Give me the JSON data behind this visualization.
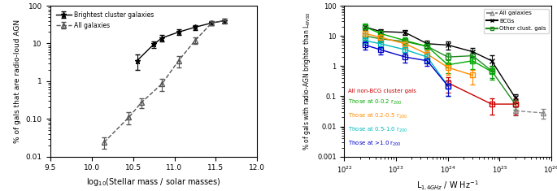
{
  "left": {
    "bcg_x": [
      10.55,
      10.75,
      10.85,
      11.05,
      11.25,
      11.45,
      11.6
    ],
    "bcg_y": [
      3.5,
      9.5,
      14.0,
      20.0,
      27.0,
      35.0,
      40.0
    ],
    "bcg_yerr_low": [
      1.5,
      2.0,
      2.5,
      3.5,
      4.0,
      5.0,
      5.0
    ],
    "bcg_yerr_high": [
      1.5,
      2.0,
      2.5,
      3.5,
      4.0,
      5.0,
      5.0
    ],
    "all_x": [
      10.15,
      10.45,
      10.6,
      10.85,
      11.05,
      11.25,
      11.45,
      11.6
    ],
    "all_y": [
      0.024,
      0.11,
      0.27,
      0.85,
      3.5,
      12.0,
      35.0,
      40.0
    ],
    "all_yerr_low": [
      0.008,
      0.04,
      0.08,
      0.3,
      1.2,
      2.5,
      5.0,
      5.0
    ],
    "all_yerr_high": [
      0.008,
      0.04,
      0.08,
      0.3,
      1.2,
      2.5,
      5.0,
      5.0
    ],
    "xlabel": "log$_{10}$(Stellar mass / solar masses)",
    "ylabel": "% of gals that are radio-loud AGN",
    "xlim": [
      9.5,
      12.0
    ],
    "ylim": [
      0.01,
      100.0
    ],
    "legend1": "Brightest cluster galaxies",
    "legend2": "All galaxies"
  },
  "right": {
    "lum_bins": [
      2.5e+22,
      5e+22,
      1.5e+23,
      4e+23,
      1e+24,
      3e+24,
      7e+24,
      2e+25,
      7e+25
    ],
    "all_gals_y": [
      null,
      null,
      null,
      null,
      null,
      null,
      null,
      0.033,
      0.028
    ],
    "all_gals_yerr_low": [
      null,
      null,
      null,
      null,
      null,
      null,
      null,
      0.01,
      0.01
    ],
    "all_gals_yerr_high": [
      null,
      null,
      null,
      null,
      null,
      null,
      null,
      0.01,
      0.01
    ],
    "bcg_y": [
      20.0,
      14.0,
      13.0,
      5.5,
      5.0,
      3.0,
      1.5,
      0.09,
      null
    ],
    "bcg_yerr_low": [
      4.0,
      3.0,
      2.5,
      1.5,
      1.5,
      1.0,
      0.8,
      0.03,
      null
    ],
    "bcg_yerr_high": [
      4.0,
      3.0,
      2.5,
      1.5,
      1.5,
      1.0,
      0.8,
      0.03,
      null
    ],
    "other_clust_y": [
      10.0,
      8.0,
      6.5,
      4.5,
      2.0,
      2.2,
      0.7,
      0.055,
      null
    ],
    "other_clust_yerr_low": [
      2.5,
      2.0,
      1.5,
      1.2,
      0.8,
      0.8,
      0.3,
      0.02,
      null
    ],
    "other_clust_yerr_high": [
      2.5,
      2.0,
      1.5,
      1.2,
      0.8,
      0.8,
      0.3,
      0.02,
      null
    ],
    "red_y": [
      null,
      null,
      null,
      null,
      0.28,
      null,
      0.055,
      0.055,
      null
    ],
    "red_yerr_low": [
      null,
      null,
      null,
      null,
      0.15,
      null,
      0.03,
      0.03,
      null
    ],
    "red_yerr_high": [
      null,
      null,
      null,
      null,
      0.15,
      null,
      0.03,
      0.03,
      null
    ],
    "green_y": [
      20.0,
      12.0,
      7.0,
      4.5,
      1.1,
      1.5,
      0.65,
      null,
      null
    ],
    "green_yerr_low": [
      5.0,
      3.0,
      2.0,
      1.5,
      0.5,
      0.7,
      0.3,
      null,
      null
    ],
    "green_yerr_high": [
      5.0,
      3.0,
      2.0,
      1.5,
      0.5,
      0.7,
      0.3,
      null,
      null
    ],
    "orange_y": [
      12.0,
      9.0,
      5.5,
      2.5,
      0.9,
      0.5,
      null,
      null,
      null
    ],
    "orange_yerr_low": [
      3.0,
      2.5,
      1.5,
      0.8,
      0.4,
      0.25,
      null,
      null,
      null
    ],
    "orange_yerr_high": [
      3.0,
      2.5,
      1.5,
      0.8,
      0.4,
      0.25,
      null,
      null,
      null
    ],
    "cyan_y": [
      7.0,
      5.5,
      3.5,
      2.0,
      0.22,
      null,
      null,
      null,
      null
    ],
    "cyan_yerr_low": [
      2.0,
      1.5,
      1.0,
      0.7,
      0.12,
      null,
      null,
      null,
      null
    ],
    "cyan_yerr_high": [
      2.0,
      1.5,
      1.0,
      0.7,
      0.12,
      null,
      null,
      null,
      null
    ],
    "blue_y": [
      5.0,
      3.5,
      2.0,
      1.5,
      0.22,
      null,
      null,
      null,
      null
    ],
    "blue_yerr_low": [
      1.5,
      1.0,
      0.7,
      0.5,
      0.12,
      null,
      null,
      null,
      null
    ],
    "blue_yerr_high": [
      1.5,
      1.0,
      0.7,
      0.5,
      0.12,
      null,
      null,
      null,
      null
    ],
    "xlabel": "L$_{1.4GHz}$ / W Hz$^{-1}$",
    "ylabel": "% of gals with radio-AGN brighter than L$_{NVSS}$",
    "xlim": [
      1e+22,
      1e+26
    ],
    "ylim": [
      0.001,
      100.0
    ],
    "colors": {
      "all_gals": "#888888",
      "bcg": "#000000",
      "other_clust": "#228B22",
      "red": "#CC0000",
      "green": "#00AA00",
      "orange": "#FF8C00",
      "cyan": "#00BBBB",
      "blue": "#0000CC"
    }
  }
}
